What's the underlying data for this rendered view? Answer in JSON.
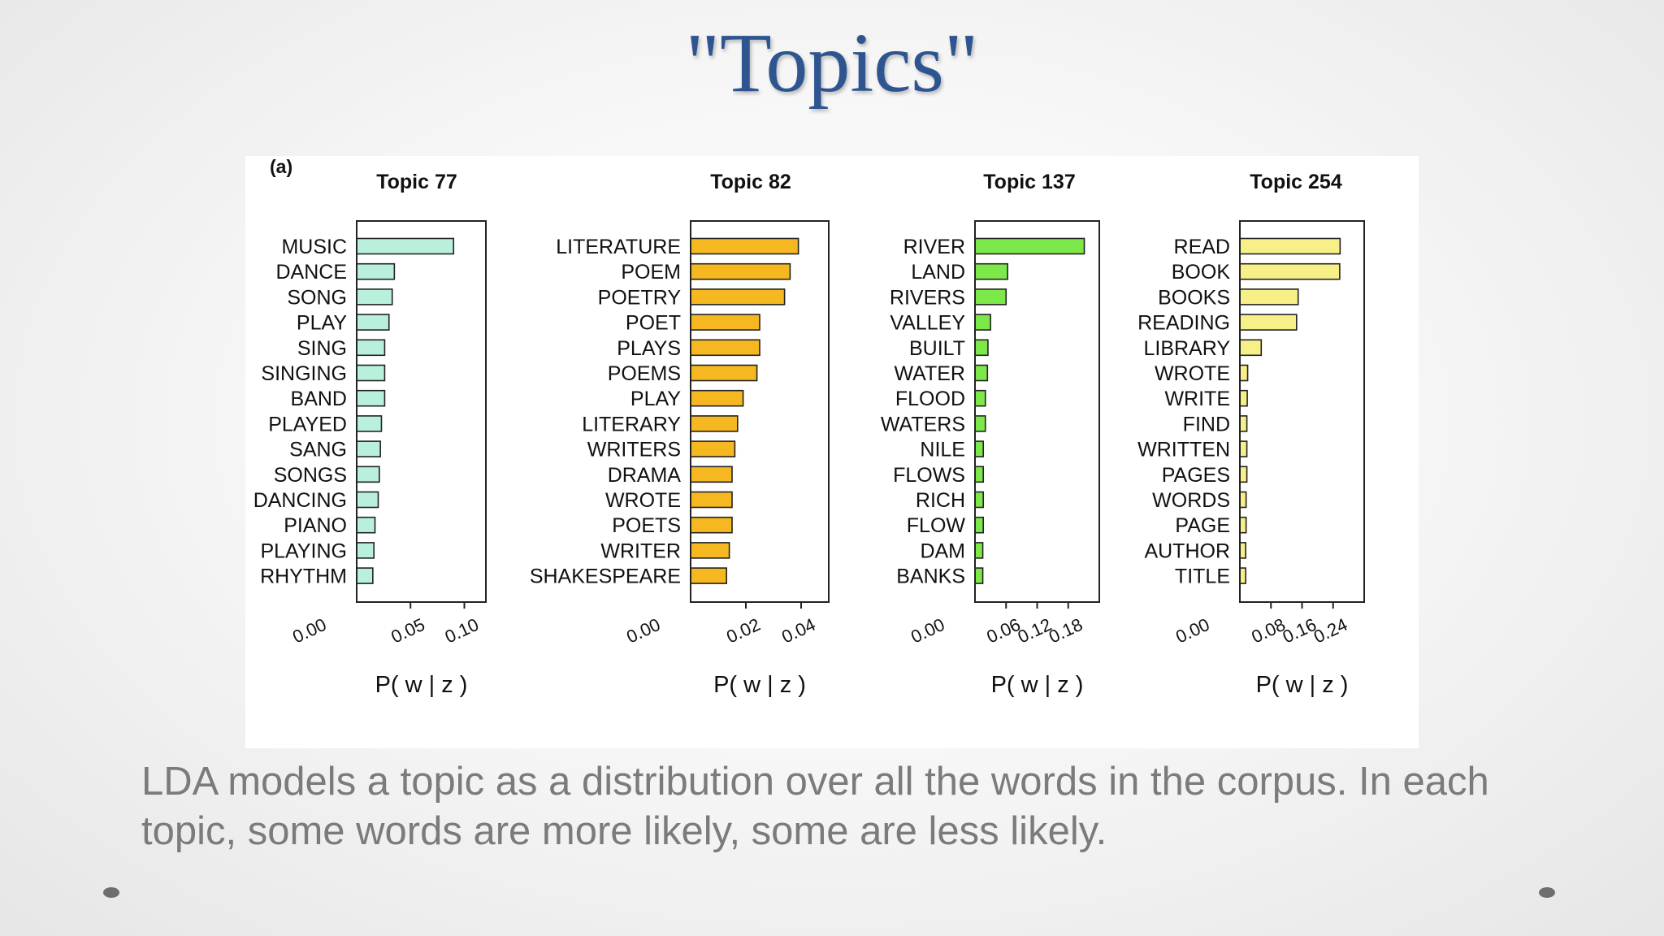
{
  "slide": {
    "title": "\"Topics\"",
    "caption": "LDA models a topic as a distribution over all the words in the corpus. In each topic, some words are more likely, some are less likely.",
    "title_color": "#2e5590",
    "caption_color": "#7b7b7b"
  },
  "figure": {
    "panel_label": "(a)"
  },
  "chart_data": [
    {
      "type": "bar",
      "orientation": "horizontal",
      "title": "Topic 77",
      "xlabel": "P( w | z )",
      "color": "#b8f0dc",
      "xlim": [
        0,
        0.12
      ],
      "ticks": [
        0.0,
        0.05,
        0.1
      ],
      "tick_labels": [
        "0.00",
        "0.05",
        "0.10"
      ],
      "categories": [
        "MUSIC",
        "DANCE",
        "SONG",
        "PLAY",
        "SING",
        "SINGING",
        "BAND",
        "PLAYED",
        "SANG",
        "SONGS",
        "DANCING",
        "PIANO",
        "PLAYING",
        "RHYTHM"
      ],
      "values": [
        0.09,
        0.035,
        0.033,
        0.03,
        0.026,
        0.026,
        0.026,
        0.023,
        0.022,
        0.021,
        0.02,
        0.017,
        0.016,
        0.015
      ]
    },
    {
      "type": "bar",
      "orientation": "horizontal",
      "title": "Topic 82",
      "xlabel": "P( w | z )",
      "color": "#f6b820",
      "xlim": [
        0,
        0.05
      ],
      "ticks": [
        0.0,
        0.02,
        0.04
      ],
      "tick_labels": [
        "0.00",
        "0.02",
        "0.04"
      ],
      "categories": [
        "LITERATURE",
        "POEM",
        "POETRY",
        "POET",
        "PLAYS",
        "POEMS",
        "PLAY",
        "LITERARY",
        "WRITERS",
        "DRAMA",
        "WROTE",
        "POETS",
        "WRITER",
        "SHAKESPEARE"
      ],
      "values": [
        0.039,
        0.036,
        0.034,
        0.025,
        0.025,
        0.024,
        0.019,
        0.017,
        0.016,
        0.015,
        0.015,
        0.015,
        0.014,
        0.013
      ]
    },
    {
      "type": "bar",
      "orientation": "horizontal",
      "title": "Topic 137",
      "xlabel": "P( w | z )",
      "color": "#7de84a",
      "xlim": [
        0,
        0.24
      ],
      "ticks": [
        0.0,
        0.06,
        0.12,
        0.18
      ],
      "tick_labels": [
        "0.00",
        "0.06",
        "0.12",
        "0.18"
      ],
      "categories": [
        "RIVER",
        "LAND",
        "RIVERS",
        "VALLEY",
        "BUILT",
        "WATER",
        "FLOOD",
        "WATERS",
        "NILE",
        "FLOWS",
        "RICH",
        "FLOW",
        "DAM",
        "BANKS"
      ],
      "values": [
        0.211,
        0.063,
        0.06,
        0.03,
        0.025,
        0.024,
        0.02,
        0.02,
        0.016,
        0.016,
        0.016,
        0.016,
        0.015,
        0.015
      ]
    },
    {
      "type": "bar",
      "orientation": "horizontal",
      "title": "Topic 254",
      "xlabel": "P( w | z )",
      "color": "#f7f088",
      "xlim": [
        0,
        0.32
      ],
      "ticks": [
        0.0,
        0.08,
        0.16,
        0.24
      ],
      "tick_labels": [
        "0.00",
        "0.08",
        "0.16",
        "0.24"
      ],
      "categories": [
        "READ",
        "BOOK",
        "BOOKS",
        "READING",
        "LIBRARY",
        "WROTE",
        "WRITE",
        "FIND",
        "WRITTEN",
        "PAGES",
        "WORDS",
        "PAGE",
        "AUTHOR",
        "TITLE"
      ],
      "values": [
        0.258,
        0.257,
        0.15,
        0.146,
        0.055,
        0.02,
        0.019,
        0.018,
        0.018,
        0.018,
        0.016,
        0.016,
        0.015,
        0.015
      ]
    }
  ]
}
